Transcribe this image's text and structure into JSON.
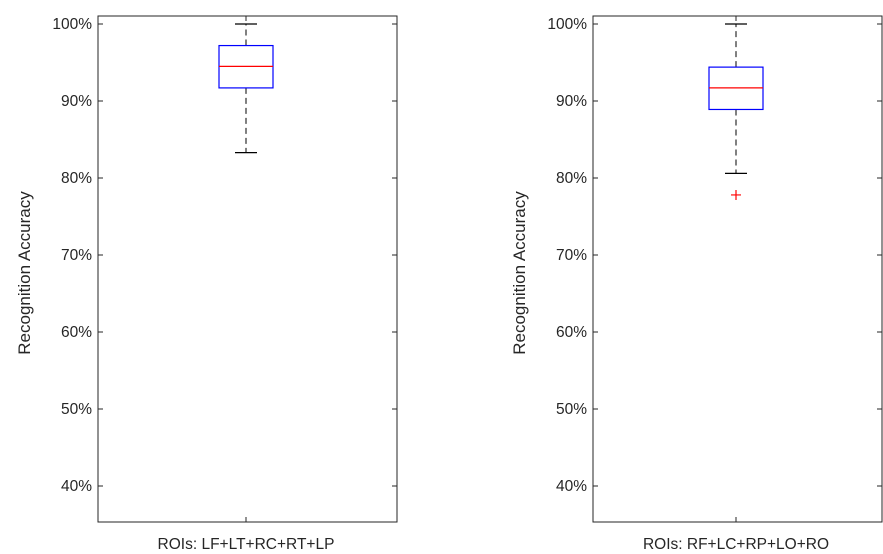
{
  "chart_data": [
    {
      "type": "boxplot",
      "ylabel": "Recognition Accuracy",
      "ylim": [
        35,
        101
      ],
      "yticks": [
        "40%",
        "50%",
        "60%",
        "70%",
        "80%",
        "90%",
        "100%"
      ],
      "ytick_values": [
        40,
        50,
        60,
        70,
        80,
        90,
        100
      ],
      "categories": [
        "ROIs: LF+LT+RC+RT+LP"
      ],
      "boxes": [
        {
          "whisker_low": 83.3,
          "q1": 91.7,
          "median": 94.5,
          "q3": 97.2,
          "whisker_high": 100,
          "outliers": []
        }
      ],
      "grid": false,
      "colors": {
        "box": "#0000ff",
        "median": "#ff0000",
        "whisker": "#000000",
        "outlier": "#ff0000"
      }
    },
    {
      "type": "boxplot",
      "ylabel": "Recognition Accuracy",
      "ylim": [
        35,
        101
      ],
      "yticks": [
        "40%",
        "50%",
        "60%",
        "70%",
        "80%",
        "90%",
        "100%"
      ],
      "ytick_values": [
        40,
        50,
        60,
        70,
        80,
        90,
        100
      ],
      "categories": [
        "ROIs: RF+LC+RP+LO+RO"
      ],
      "boxes": [
        {
          "whisker_low": 80.6,
          "q1": 88.9,
          "median": 91.7,
          "q3": 94.4,
          "whisker_high": 100,
          "outliers": [
            77.8
          ]
        }
      ],
      "grid": false,
      "colors": {
        "box": "#0000ff",
        "median": "#ff0000",
        "whisker": "#000000",
        "outlier": "#ff0000"
      }
    }
  ]
}
